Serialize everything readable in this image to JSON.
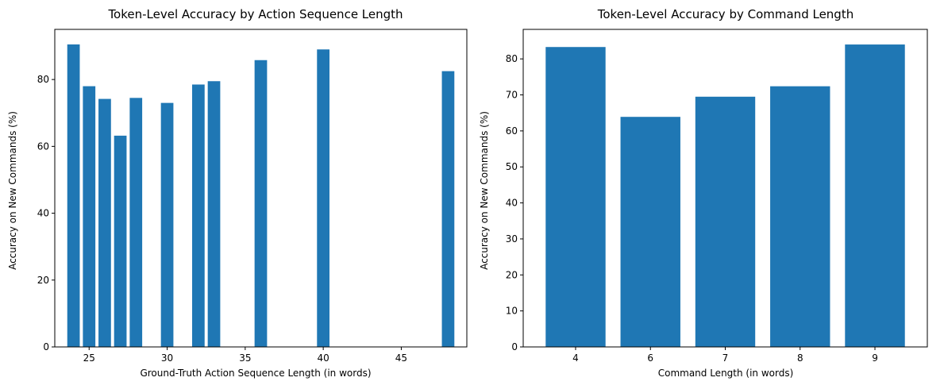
{
  "colors": {
    "bar": "#1f77b4",
    "axis": "#000000"
  },
  "chart_data": [
    {
      "type": "bar",
      "title": "Token-Level Accuracy by Action Sequence Length",
      "xlabel": "Ground-Truth Action Sequence Length (in words)",
      "ylabel": "Accuracy on New Commands (%)",
      "x": [
        24,
        25,
        26,
        27,
        28,
        30,
        32,
        33,
        36,
        40,
        48
      ],
      "values": [
        90.5,
        78.0,
        74.2,
        63.2,
        74.5,
        73.0,
        78.5,
        79.5,
        85.8,
        89.0,
        82.5
      ],
      "bar_width": 0.8,
      "xlim": [
        22.8,
        49.2
      ],
      "ylim": [
        0,
        95.0
      ],
      "xticks": [
        25,
        30,
        35,
        40,
        45
      ],
      "yticks": [
        0,
        20,
        40,
        60,
        80
      ],
      "grid": false,
      "legend": "none"
    },
    {
      "type": "bar",
      "title": "Token-Level Accuracy by Command Length",
      "xlabel": "Command Length (in words)",
      "ylabel": "Accuracy on New Commands (%)",
      "categories": [
        "4",
        "6",
        "7",
        "8",
        "9"
      ],
      "values": [
        83.3,
        63.9,
        69.5,
        72.4,
        84.0
      ],
      "bar_width": 0.8,
      "ylim": [
        0,
        88.2
      ],
      "yticks": [
        0,
        10,
        20,
        30,
        40,
        50,
        60,
        70,
        80
      ],
      "grid": false,
      "legend": "none"
    }
  ]
}
